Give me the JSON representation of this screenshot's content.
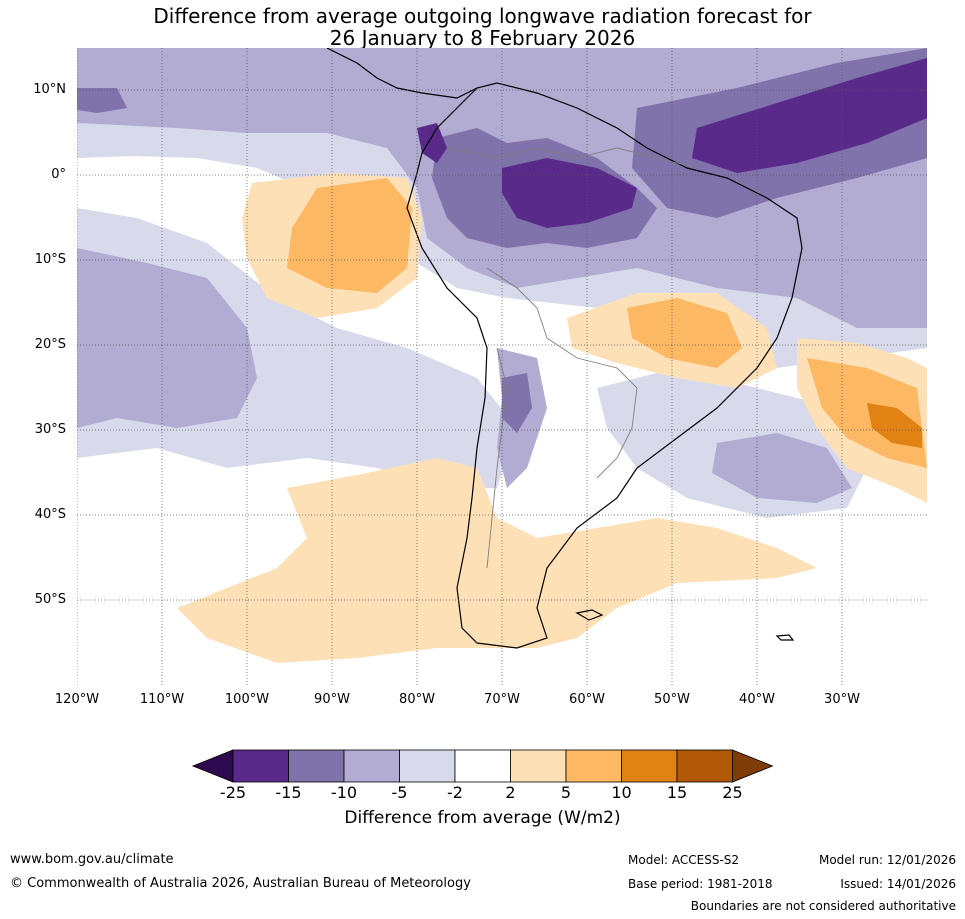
{
  "title": {
    "line1": "Difference from average outgoing longwave radiation forecast for",
    "line2": "26 January to 8 February 2026"
  },
  "map": {
    "lat_labels": [
      "10°N",
      "0°",
      "10°S",
      "20°S",
      "30°S",
      "40°S",
      "50°S"
    ],
    "lon_labels": [
      "120°W",
      "110°W",
      "100°W",
      "90°W",
      "80°W",
      "70°W",
      "60°W",
      "50°W",
      "40°W",
      "30°W"
    ],
    "colors": {
      "ocean_neutral": "#ffffff",
      "land_line": "#000000",
      "border_line": "#7f7f7f",
      "grid_line": "#555555"
    }
  },
  "colorbar": {
    "ticks": [
      "-25",
      "-15",
      "-10",
      "-5",
      "-2",
      "2",
      "5",
      "10",
      "15",
      "25"
    ],
    "colors": [
      "#2d0a4f",
      "#5a2a8a",
      "#8073ac",
      "#b2abd2",
      "#d8daeb",
      "#ffffff",
      "#fee0b6",
      "#fdb863",
      "#e08214",
      "#b35806",
      "#7f3b08"
    ],
    "label": "Difference from average (W/m2)"
  },
  "footer": {
    "website": "www.bom.gov.au/climate",
    "copyright": "© Commonwealth of Australia 2026, Australian Bureau of Meteorology",
    "model": "Model: ACCESS-S2",
    "base_period": "Base period: 1981-2018",
    "model_run": "Model run: 12/01/2026",
    "issued": "Issued: 14/01/2026",
    "disclaimer": "Boundaries are not considered authoritative"
  }
}
